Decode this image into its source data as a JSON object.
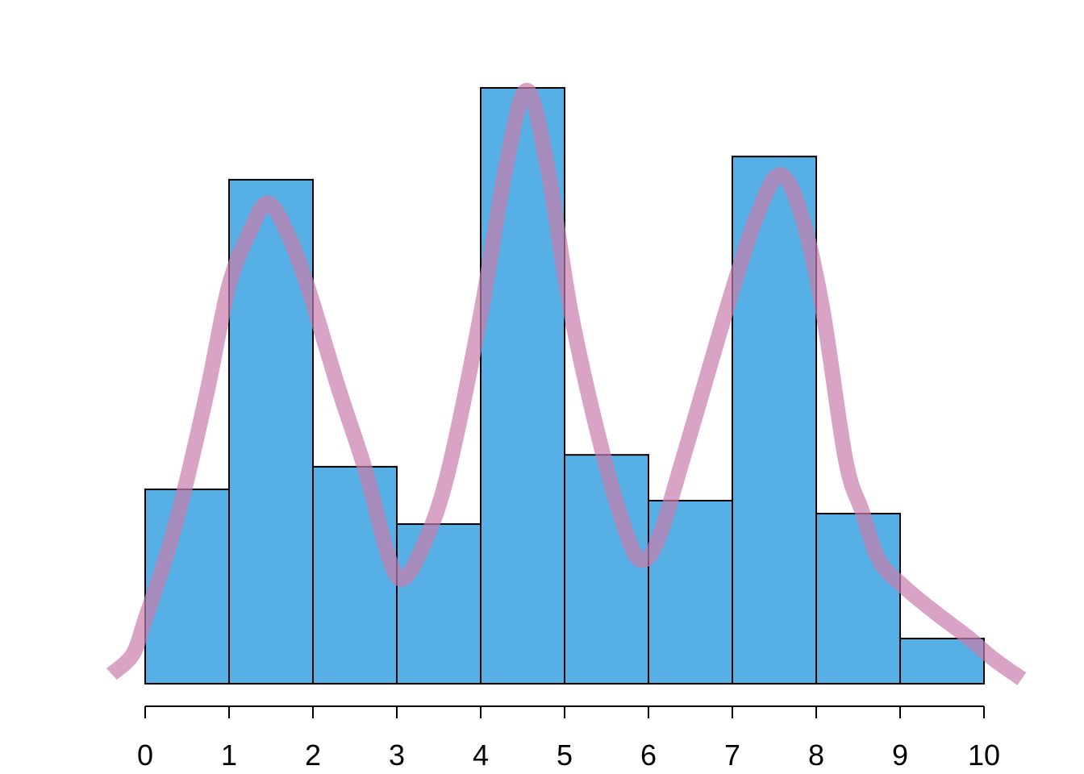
{
  "chart_data": {
    "type": "histogram",
    "subtype": "histogram-with-density-overlay",
    "title": "",
    "xlabel": "",
    "ylabel": "",
    "xlim": [
      0,
      10
    ],
    "ylim_density": [
      0,
      0.22
    ],
    "grid": false,
    "legend": false,
    "y_axis_visible": false,
    "x_tick_labels": [
      "0",
      "1",
      "2",
      "3",
      "4",
      "5",
      "6",
      "7",
      "8",
      "9",
      "10"
    ],
    "bin_edges": [
      0,
      1,
      2,
      3,
      4,
      5,
      6,
      7,
      8,
      9,
      10
    ],
    "bin_densities": [
      0.0688,
      0.1784,
      0.0768,
      0.0565,
      0.2109,
      0.081,
      0.0648,
      0.1866,
      0.0602,
      0.016
    ],
    "density_curve": {
      "x": [
        -0.4,
        -0.15,
        0.0,
        0.25,
        0.47,
        0.75,
        1.0,
        1.25,
        1.46,
        1.7,
        1.95,
        2.3,
        2.63,
        2.9,
        3.07,
        3.3,
        3.6,
        4.0,
        4.3,
        4.55,
        4.8,
        5.08,
        5.45,
        5.75,
        5.92,
        6.12,
        6.45,
        7.0,
        7.33,
        7.57,
        7.81,
        8.07,
        8.35,
        8.55,
        8.75,
        9.05,
        9.45,
        9.8,
        10.12,
        10.45
      ],
      "density": [
        0.0034,
        0.0103,
        0.0228,
        0.0451,
        0.0688,
        0.105,
        0.141,
        0.1601,
        0.1701,
        0.1592,
        0.1393,
        0.105,
        0.0751,
        0.0451,
        0.0371,
        0.0479,
        0.0736,
        0.1307,
        0.1829,
        0.21,
        0.1821,
        0.1307,
        0.0822,
        0.0522,
        0.0437,
        0.0514,
        0.0836,
        0.1393,
        0.1684,
        0.1801,
        0.1672,
        0.1336,
        0.0793,
        0.0608,
        0.0437,
        0.0342,
        0.0245,
        0.0166,
        0.0086,
        0.0017
      ]
    },
    "colors": {
      "bar_fill": "#56AFE5",
      "bar_border": "#000000",
      "density_line": "rgba(201,124,173,0.70)",
      "axis": "#000000",
      "background": "#FFFFFF"
    }
  }
}
